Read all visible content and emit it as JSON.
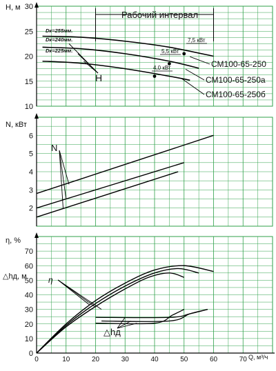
{
  "colors": {
    "grid": "#2fa04a",
    "curve": "#000000",
    "background": "#ffffff"
  },
  "x_axis": {
    "label": "Q, м³/ч",
    "ticks": [
      0,
      10,
      20,
      30,
      40,
      50,
      60,
      70
    ]
  },
  "work_interval_label": "Рабочий интервал",
  "chart_data": [
    {
      "type": "line",
      "title": "",
      "xlabel": "Q, м³/ч",
      "ylabel": "H, м",
      "xlim": [
        0,
        80
      ],
      "ylim": [
        10,
        30
      ],
      "yticks": [
        10,
        15,
        20,
        25,
        30
      ],
      "grid": true,
      "series": [
        {
          "name": "Dк=255мм.",
          "points": [
            [
              2,
              24.0
            ],
            [
              15,
              23.8
            ],
            [
              30,
              23.0
            ],
            [
              45,
              21.8
            ],
            [
              60,
              20.0
            ]
          ]
        },
        {
          "name": "Dк=240мм.",
          "points": [
            [
              2,
              21.8
            ],
            [
              15,
              21.5
            ],
            [
              30,
              20.5
            ],
            [
              45,
              19.0
            ],
            [
              55,
              17.6
            ]
          ]
        },
        {
          "name": "Dк=225мм.",
          "points": [
            [
              2,
              19.0
            ],
            [
              15,
              18.6
            ],
            [
              30,
              17.5
            ],
            [
              45,
              16.0
            ],
            [
              52,
              15.2
            ]
          ]
        }
      ],
      "marked_points": [
        {
          "x": 50,
          "y": 20.5,
          "label": "7,5 кВт"
        },
        {
          "x": 45,
          "y": 18.5,
          "label": "5,5 кВт"
        },
        {
          "x": 40,
          "y": 16.0,
          "label": "4,0 кВт"
        }
      ],
      "pump_labels": [
        "СМ100-65-250",
        "СМ100-65-250а",
        "СМ100-65-250б"
      ],
      "curve_group_label": "H"
    },
    {
      "type": "line",
      "title": "",
      "xlabel": "Q, м³/ч",
      "ylabel": "N, кВт",
      "xlim": [
        0,
        80
      ],
      "ylim": [
        1,
        7
      ],
      "yticks": [
        2,
        3,
        4,
        5,
        6
      ],
      "grid": true,
      "series": [
        {
          "name": "",
          "points": [
            [
              0,
              2.8
            ],
            [
              60,
              6.0
            ]
          ]
        },
        {
          "name": "",
          "points": [
            [
              0,
              2.0
            ],
            [
              50,
              4.5
            ]
          ]
        },
        {
          "name": "",
          "points": [
            [
              0,
              1.5
            ],
            [
              48,
              4.0
            ]
          ]
        }
      ],
      "curve_group_label": "N"
    },
    {
      "type": "line",
      "title": "",
      "xlabel": "Q, м³/ч",
      "ylabel": "η, %",
      "ylabel2": "△hд, м",
      "xlim": [
        0,
        80
      ],
      "ylim": [
        0,
        80
      ],
      "yticks": [
        0,
        10,
        20,
        30,
        40,
        50,
        60,
        70
      ],
      "grid": true,
      "efficiency_series": [
        {
          "name": "",
          "points": [
            [
              0,
              0
            ],
            [
              10,
              20
            ],
            [
              20,
              36
            ],
            [
              30,
              48
            ],
            [
              40,
              57
            ],
            [
              50,
              60
            ],
            [
              60,
              56
            ]
          ]
        },
        {
          "name": "",
          "points": [
            [
              0,
              0
            ],
            [
              10,
              19
            ],
            [
              20,
              34
            ],
            [
              30,
              46
            ],
            [
              40,
              55
            ],
            [
              48,
              58
            ],
            [
              55,
              55
            ]
          ]
        },
        {
          "name": "",
          "points": [
            [
              0,
              0
            ],
            [
              10,
              18
            ],
            [
              20,
              32
            ],
            [
              30,
              44
            ],
            [
              38,
              52
            ],
            [
              45,
              55
            ],
            [
              50,
              52
            ]
          ]
        }
      ],
      "npsh_series": [
        {
          "name": "",
          "points": [
            [
              20,
              24.5
            ],
            [
              45,
              24.5
            ],
            [
              52,
              27
            ],
            [
              58,
              30
            ]
          ]
        },
        {
          "name": "",
          "points": [
            [
              22,
              22
            ],
            [
              45,
              22
            ],
            [
              52,
              27
            ],
            [
              58,
              30
            ]
          ]
        },
        {
          "name": "",
          "points": [
            [
              20,
              20.5
            ],
            [
              40,
              20.5
            ],
            [
              46,
              26
            ],
            [
              50,
              30
            ]
          ]
        }
      ],
      "efficiency_group_label": "η",
      "npsh_group_label": "△hд"
    }
  ]
}
